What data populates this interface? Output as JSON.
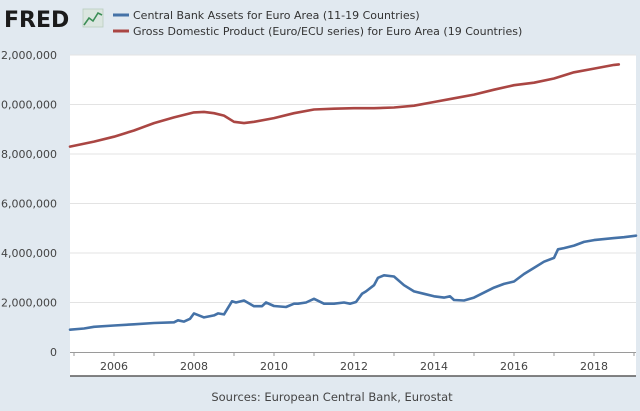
{
  "brand": {
    "logo_text": "FRED",
    "logo_icon": "line-chart-icon"
  },
  "colors": {
    "background": "#e1e9f0",
    "plot_background": "#ffffff",
    "grid": "#e3e3e3",
    "central_bank_series": "#4572a7",
    "gdp_series": "#aa4643"
  },
  "source": "Sources: European Central Bank, Eurostat",
  "chart_data": {
    "type": "line",
    "title": "",
    "xlabel": "",
    "ylabel": "",
    "xlim": [
      2004.9,
      2019.05
    ],
    "ylim": [
      0,
      12000000
    ],
    "x_ticks": [
      2006,
      2008,
      2010,
      2012,
      2014,
      2016,
      2018
    ],
    "x_tick_labels": [
      "2006",
      "2008",
      "2010",
      "2012",
      "2014",
      "2016",
      "2018"
    ],
    "y_ticks": [
      0,
      2000000,
      4000000,
      6000000,
      8000000,
      10000000,
      12000000
    ],
    "y_tick_labels": [
      "0",
      "2,000,000",
      "4,000,000",
      "6,000,000",
      "8,000,000",
      "10,000,000",
      "12,000,000"
    ],
    "grid": true,
    "legend_position": "top-left",
    "series": [
      {
        "name": "Central Bank Assets for Euro Area (11-19 Countries)",
        "color": "#4572a7",
        "x": [
          2004.9,
          2005.25,
          2005.5,
          2006.0,
          2006.5,
          2007.0,
          2007.5,
          2007.6,
          2007.75,
          2007.9,
          2008.0,
          2008.25,
          2008.5,
          2008.6,
          2008.75,
          2008.95,
          2009.05,
          2009.25,
          2009.5,
          2009.7,
          2009.8,
          2010.0,
          2010.3,
          2010.5,
          2010.6,
          2010.8,
          2011.0,
          2011.25,
          2011.5,
          2011.75,
          2011.9,
          2012.05,
          2012.2,
          2012.3,
          2012.5,
          2012.6,
          2012.75,
          2013.0,
          2013.25,
          2013.5,
          2013.75,
          2014.0,
          2014.25,
          2014.4,
          2014.5,
          2014.75,
          2015.0,
          2015.25,
          2015.5,
          2015.75,
          2016.0,
          2016.25,
          2016.5,
          2016.75,
          2017.0,
          2017.1,
          2017.25,
          2017.5,
          2017.75,
          2018.0,
          2018.25,
          2018.5,
          2018.75,
          2019.05
        ],
        "values": [
          900000,
          950000,
          1020000,
          1070000,
          1120000,
          1170000,
          1200000,
          1280000,
          1230000,
          1340000,
          1560000,
          1400000,
          1480000,
          1560000,
          1520000,
          2050000,
          2000000,
          2080000,
          1850000,
          1850000,
          2000000,
          1860000,
          1820000,
          1950000,
          1950000,
          2000000,
          2150000,
          1950000,
          1950000,
          2000000,
          1950000,
          2020000,
          2350000,
          2450000,
          2700000,
          3000000,
          3100000,
          3050000,
          2700000,
          2450000,
          2350000,
          2250000,
          2200000,
          2250000,
          2100000,
          2080000,
          2200000,
          2400000,
          2600000,
          2750000,
          2850000,
          3150000,
          3400000,
          3650000,
          3800000,
          4150000,
          4200000,
          4300000,
          4450000,
          4520000,
          4560000,
          4600000,
          4640000,
          4700000
        ]
      },
      {
        "name": "Gross Domestic Product (Euro/ECU series) for Euro Area (19 Countries)",
        "color": "#aa4643",
        "x": [
          2004.9,
          2005.5,
          2006.0,
          2006.5,
          2007.0,
          2007.5,
          2008.0,
          2008.25,
          2008.5,
          2008.75,
          2009.0,
          2009.25,
          2009.5,
          2010.0,
          2010.5,
          2011.0,
          2011.5,
          2012.0,
          2012.5,
          2013.0,
          2013.5,
          2014.0,
          2014.5,
          2015.0,
          2015.5,
          2016.0,
          2016.5,
          2017.0,
          2017.5,
          2018.0,
          2018.5,
          2018.62
        ],
        "values": [
          8300000,
          8500000,
          8700000,
          8950000,
          9250000,
          9480000,
          9680000,
          9700000,
          9650000,
          9550000,
          9300000,
          9250000,
          9300000,
          9450000,
          9650000,
          9800000,
          9830000,
          9850000,
          9850000,
          9880000,
          9950000,
          10100000,
          10250000,
          10400000,
          10600000,
          10780000,
          10880000,
          11050000,
          11300000,
          11450000,
          11600000,
          11620000
        ]
      }
    ]
  }
}
